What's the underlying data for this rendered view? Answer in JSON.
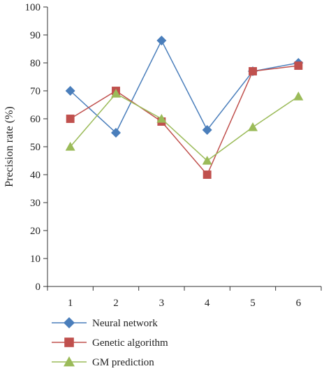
{
  "chart_data": {
    "type": "line",
    "title": "",
    "xlabel": "",
    "ylabel": "Precision rate (%)",
    "x": [
      1,
      2,
      3,
      4,
      5,
      6
    ],
    "xticks": [
      "1",
      "2",
      "3",
      "4",
      "5",
      "6"
    ],
    "ylim": [
      0,
      100
    ],
    "yticks": [
      "0",
      "10",
      "20",
      "30",
      "40",
      "50",
      "60",
      "70",
      "80",
      "90",
      "100"
    ],
    "grid": false,
    "legend_position": "bottom",
    "series": [
      {
        "name": "Neural network",
        "values": [
          70,
          55,
          88,
          56,
          77,
          80
        ],
        "color": "#4a7ebb",
        "marker": "diamond"
      },
      {
        "name": "Genetic algorithm",
        "values": [
          60,
          70,
          59,
          40,
          77,
          79
        ],
        "color": "#c0504d",
        "marker": "square"
      },
      {
        "name": "GM prediction",
        "values": [
          50,
          69,
          60,
          45,
          57,
          68
        ],
        "color": "#9bbb59",
        "marker": "triangle"
      }
    ]
  }
}
